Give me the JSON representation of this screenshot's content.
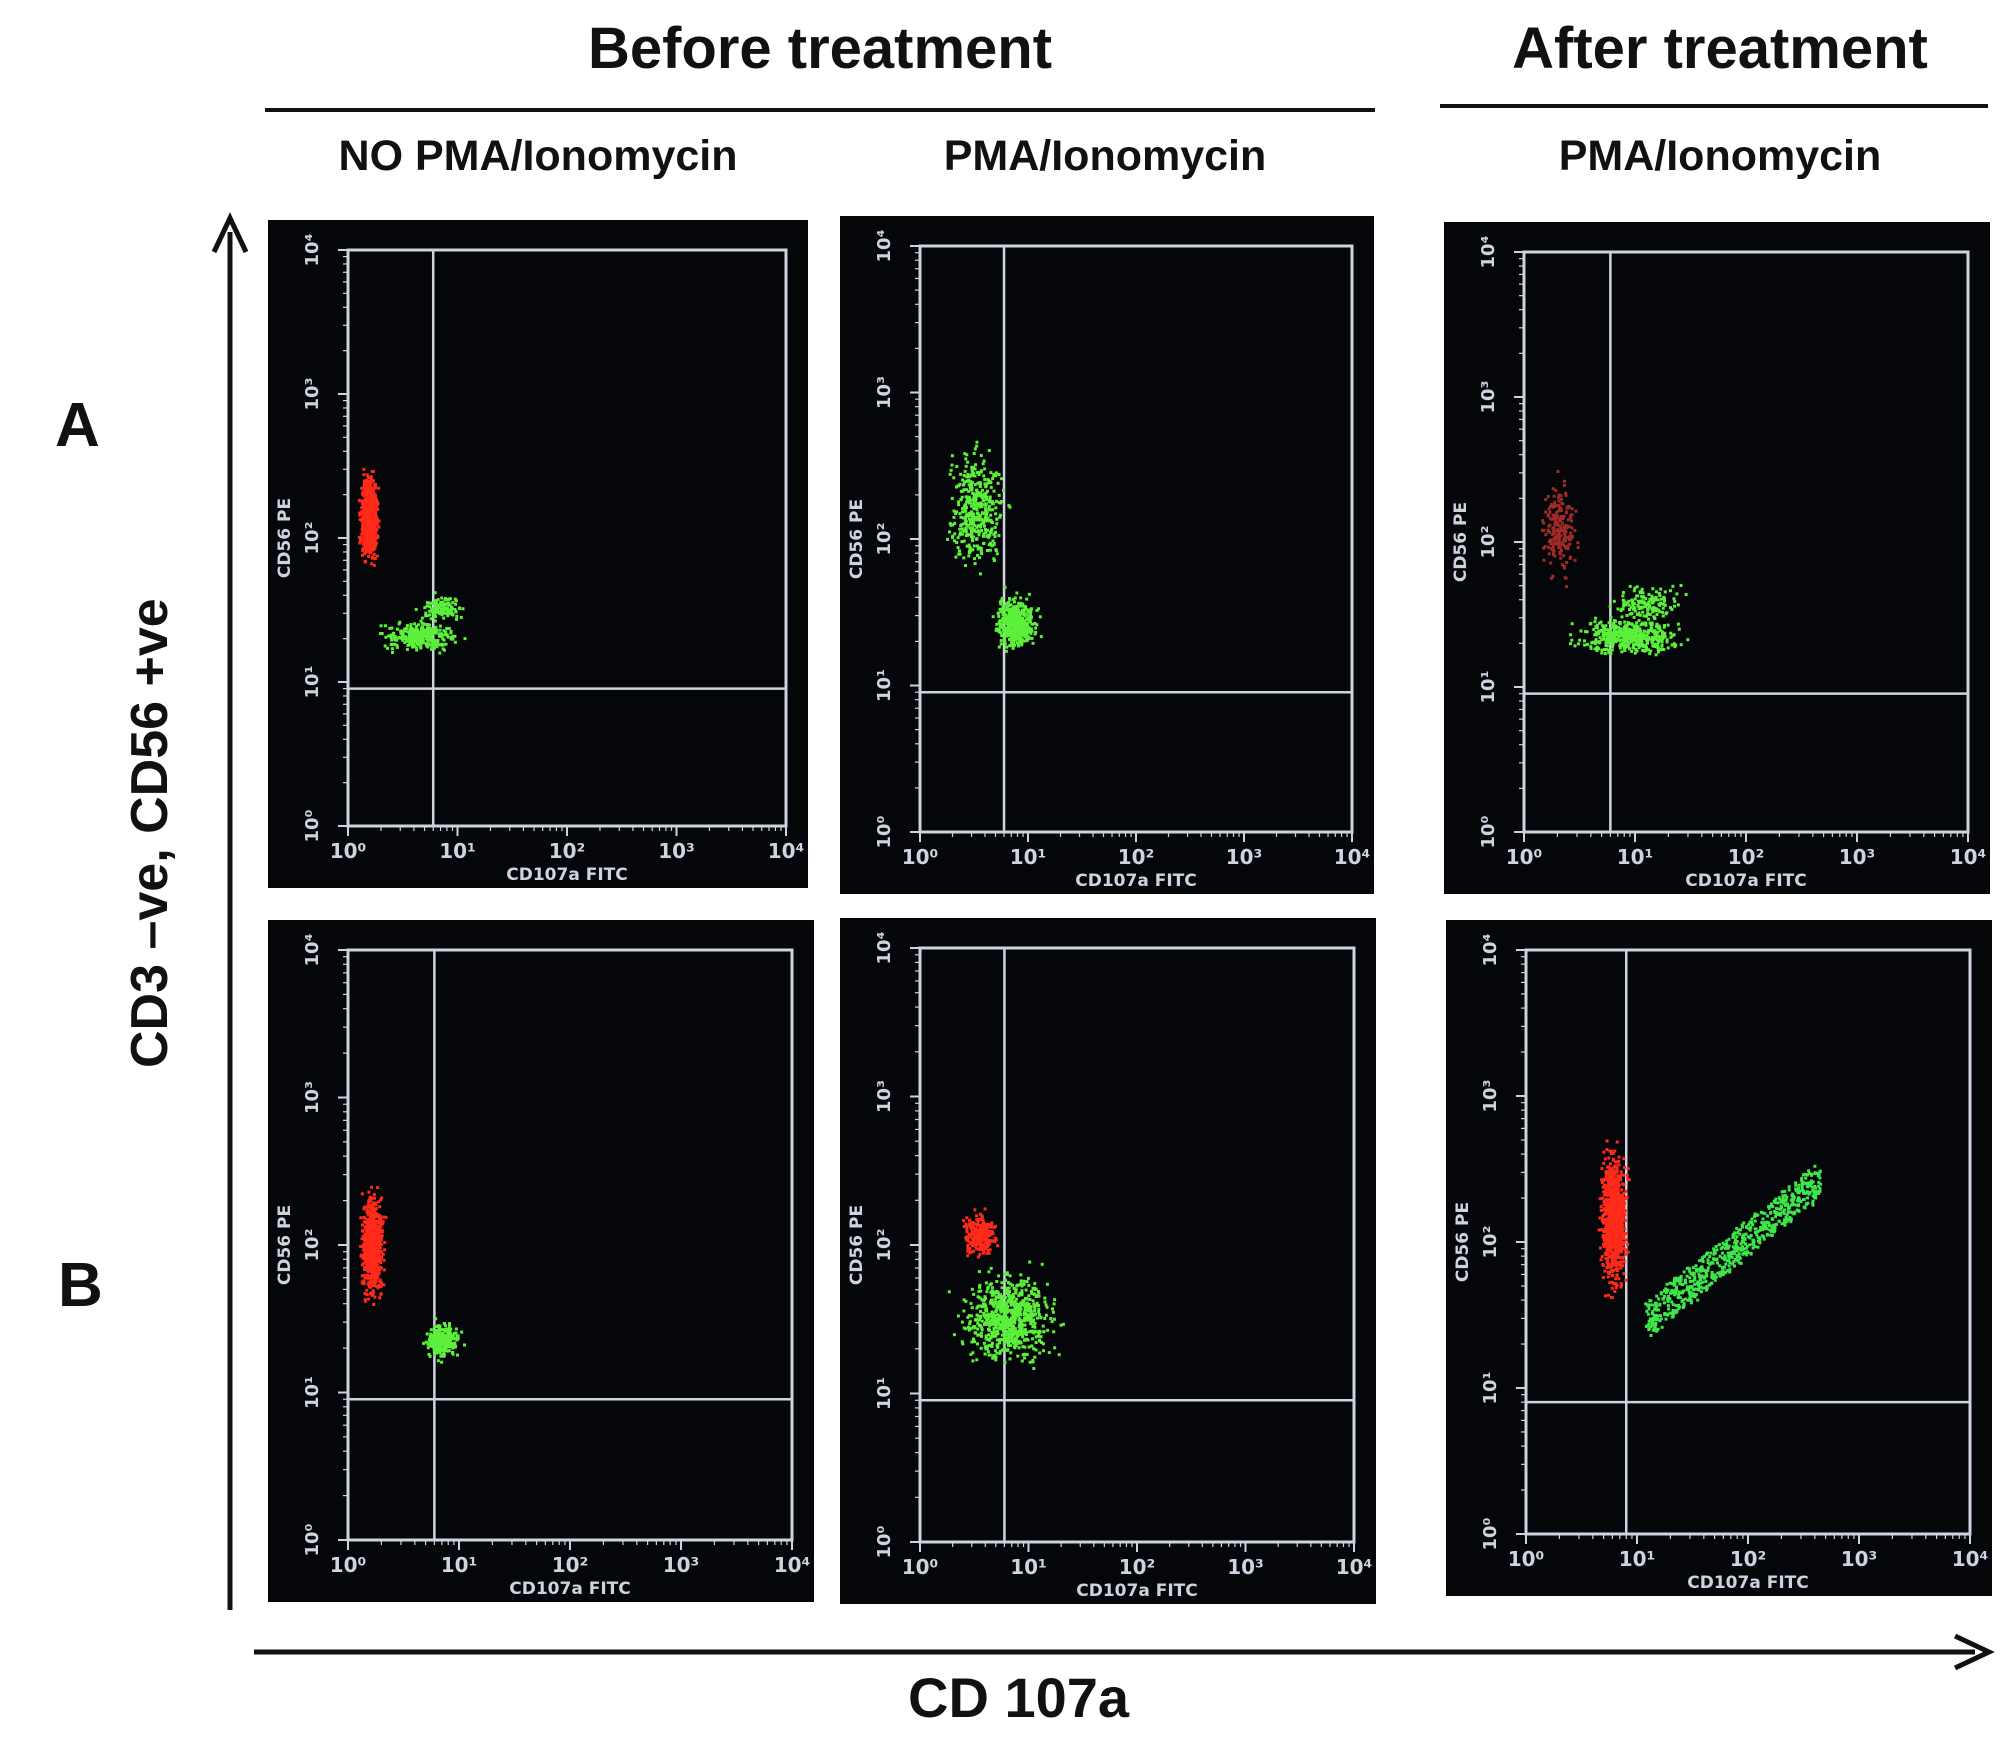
{
  "headers": {
    "before": "Before treatment",
    "after": "After treatment"
  },
  "columns": {
    "no_pma": "NO PMA/Ionomycin",
    "pma_before": "PMA/Ionomycin",
    "pma_after": "PMA/Ionomycin"
  },
  "rows": {
    "a": "A",
    "b": "B"
  },
  "axes": {
    "y_label": "CD3 –ve, CD56 +ve",
    "x_label": "CD 107a"
  },
  "chart_data": [
    {
      "type": "scatter",
      "panel": "A1",
      "row": "A",
      "column": "NO PMA/Ionomycin",
      "x_scale": "log",
      "y_scale": "log",
      "xlim": [
        1,
        10000
      ],
      "ylim": [
        1,
        10000
      ],
      "xlabel": "CD107a FITC",
      "ylabel": "CD56 PE",
      "x_ticks": [
        "10⁰",
        "10¹",
        "10²",
        "10³",
        "10⁴"
      ],
      "y_ticks": [
        "10⁰",
        "10¹",
        "10²",
        "10³",
        "10⁴"
      ],
      "quadrant_gate": {
        "x": 6,
        "y": 9
      },
      "series": [
        {
          "color": "#ff2a1a",
          "clusters": [
            {
              "x": [
                1.15,
                2.0
              ],
              "y": [
                50,
                400
              ],
              "n": 700
            }
          ]
        },
        {
          "color": "#5cf03a",
          "clusters": [
            {
              "x": [
                1.4,
                14
              ],
              "y": [
                15,
                30
              ],
              "n": 320
            },
            {
              "x": [
                3.5,
                14
              ],
              "y": [
                25,
                45
              ],
              "n": 120
            }
          ]
        }
      ]
    },
    {
      "type": "scatter",
      "panel": "A2",
      "row": "A",
      "column": "PMA/Ionomycin",
      "x_scale": "log",
      "y_scale": "log",
      "xlim": [
        1,
        10000
      ],
      "ylim": [
        1,
        10000
      ],
      "xlabel": "CD107a FITC",
      "ylabel": "CD56 PE",
      "x_ticks": [
        "10⁰",
        "10¹",
        "10²",
        "10³",
        "10⁴"
      ],
      "y_ticks": [
        "10⁰",
        "10¹",
        "10²",
        "10³",
        "10⁴"
      ],
      "quadrant_gate": {
        "x": 6,
        "y": 9
      },
      "series": [
        {
          "color": "#5cf03a",
          "clusters": [
            {
              "x": [
                1.3,
                8
              ],
              "y": [
                40,
                700
              ],
              "n": 420
            },
            {
              "x": [
                4,
                14
              ],
              "y": [
                15,
                50
              ],
              "n": 480
            }
          ]
        }
      ]
    },
    {
      "type": "scatter",
      "panel": "A3",
      "row": "A",
      "column": "PMA/Ionomycin (after)",
      "x_scale": "log",
      "y_scale": "log",
      "xlim": [
        1,
        10000
      ],
      "ylim": [
        1,
        10000
      ],
      "xlabel": "CD107a FITC",
      "ylabel": "CD56 PE",
      "x_ticks": [
        "10⁰",
        "10¹",
        "10²",
        "10³",
        "10⁴"
      ],
      "y_ticks": [
        "10⁰",
        "10¹",
        "10²",
        "10³",
        "10⁴"
      ],
      "quadrant_gate": {
        "x": 6,
        "y": 9
      },
      "series": [
        {
          "color": "#a02a25",
          "clusters": [
            {
              "x": [
                1.2,
                3.5
              ],
              "y": [
                40,
                400
              ],
              "n": 200
            }
          ]
        },
        {
          "color": "#5cf03a",
          "clusters": [
            {
              "x": [
                1.8,
                40
              ],
              "y": [
                15,
                35
              ],
              "n": 450
            },
            {
              "x": [
                4,
                40
              ],
              "y": [
                25,
                60
              ],
              "n": 150
            }
          ]
        }
      ]
    },
    {
      "type": "scatter",
      "panel": "B1",
      "row": "B",
      "column": "NO PMA/Ionomycin",
      "x_scale": "log",
      "y_scale": "log",
      "xlim": [
        1,
        10000
      ],
      "ylim": [
        1,
        10000
      ],
      "xlabel": "CD107a FITC",
      "ylabel": "CD56 PE",
      "x_ticks": [
        "10⁰",
        "10¹",
        "10²",
        "10³",
        "10⁴"
      ],
      "y_ticks": [
        "10⁰",
        "10¹",
        "10²",
        "10³",
        "10⁴"
      ],
      "quadrant_gate": {
        "x": 6,
        "y": 9
      },
      "series": [
        {
          "color": "#ff2a1a",
          "clusters": [
            {
              "x": [
                1.15,
                2.3
              ],
              "y": [
                30,
                350
              ],
              "n": 700
            }
          ]
        },
        {
          "color": "#5cf03a",
          "clusters": [
            {
              "x": [
                4,
                12
              ],
              "y": [
                15,
                35
              ],
              "n": 260
            }
          ]
        }
      ]
    },
    {
      "type": "scatter",
      "panel": "B2",
      "row": "B",
      "column": "PMA/Ionomycin",
      "x_scale": "log",
      "y_scale": "log",
      "xlim": [
        1,
        10000
      ],
      "ylim": [
        1,
        10000
      ],
      "xlabel": "CD107a FITC",
      "ylabel": "CD56 PE",
      "x_ticks": [
        "10⁰",
        "10¹",
        "10²",
        "10³",
        "10⁴"
      ],
      "y_ticks": [
        "10⁰",
        "10¹",
        "10²",
        "10³",
        "10⁴"
      ],
      "quadrant_gate": {
        "x": 6,
        "y": 9
      },
      "series": [
        {
          "color": "#ff2a1a",
          "clusters": [
            {
              "x": [
                2,
                6
              ],
              "y": [
                70,
                200
              ],
              "n": 250
            }
          ]
        },
        {
          "color": "#5cf03a",
          "clusters": [
            {
              "x": [
                1.5,
                28
              ],
              "y": [
                12,
                90
              ],
              "n": 750
            }
          ]
        }
      ]
    },
    {
      "type": "scatter",
      "panel": "B3",
      "row": "B",
      "column": "PMA/Ionomycin (after)",
      "x_scale": "log",
      "y_scale": "log",
      "xlim": [
        1,
        10000
      ],
      "ylim": [
        1,
        10000
      ],
      "xlabel": "CD107a FITC",
      "ylabel": "CD56 PE",
      "x_ticks": [
        "10⁰",
        "10¹",
        "10²",
        "10³",
        "10⁴"
      ],
      "y_ticks": [
        "10⁰",
        "10¹",
        "10²",
        "10³",
        "10⁴"
      ],
      "quadrant_gate": {
        "x": 8,
        "y": 8
      },
      "series": [
        {
          "color": "#ff2a1a",
          "clusters": [
            {
              "x": [
                4,
                9
              ],
              "y": [
                30,
                700
              ],
              "n": 900
            }
          ]
        },
        {
          "color": "#3ee64a",
          "clusters": [
            {
              "diagonal": true,
              "x": [
                12,
                450
              ],
              "y": [
                30,
                280
              ],
              "n": 700
            }
          ]
        }
      ]
    }
  ]
}
